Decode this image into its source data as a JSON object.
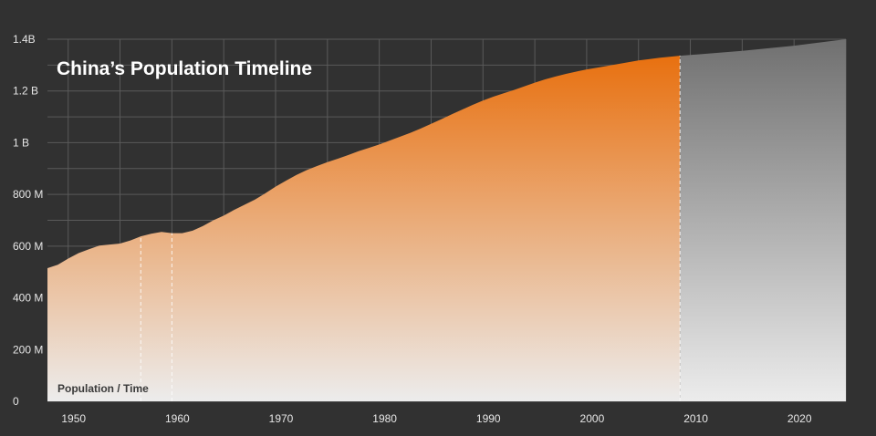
{
  "chart_data": {
    "type": "area",
    "title": "China’s Population Timeline",
    "ylabel": "Population / Time",
    "xlabel": "",
    "xlim": [
      1948,
      2025
    ],
    "ylim": [
      0,
      1400000000
    ],
    "grid": true,
    "x_ticks": [
      {
        "value": 1950,
        "label": "1950"
      },
      {
        "value": 1960,
        "label": "1960"
      },
      {
        "value": 1970,
        "label": "1970"
      },
      {
        "value": 1980,
        "label": "1980"
      },
      {
        "value": 1990,
        "label": "1990"
      },
      {
        "value": 2000,
        "label": "2000"
      },
      {
        "value": 2010,
        "label": "2010"
      },
      {
        "value": 2020,
        "label": "2020"
      }
    ],
    "y_ticks": [
      {
        "value": 0,
        "label": "0"
      },
      {
        "value": 200000000,
        "label": "200 M"
      },
      {
        "value": 400000000,
        "label": "400 M"
      },
      {
        "value": 600000000,
        "label": "600 M"
      },
      {
        "value": 800000000,
        "label": "800 M"
      },
      {
        "value": 1000000000,
        "label": "1 B"
      },
      {
        "value": 1200000000,
        "label": "1.2 B"
      },
      {
        "value": 1400000000,
        "label": "1.4B"
      }
    ],
    "markers": [
      1957,
      1960,
      2009
    ],
    "colors": {
      "background": "#313131",
      "grid": "#5a5a5a",
      "historical": "#e8700f",
      "projected": "#7a7a7a",
      "fade": "#ececec"
    },
    "series": [
      {
        "values": [
          [
            1948,
            515000000
          ],
          [
            1949,
            528000000
          ],
          [
            1950,
            552000000
          ],
          [
            1951,
            573000000
          ],
          [
            1952,
            588000000
          ],
          [
            1953,
            602000000
          ],
          [
            1954,
            606000000
          ],
          [
            1955,
            610000000
          ],
          [
            1956,
            622000000
          ],
          [
            1957,
            638000000
          ],
          [
            1958,
            648000000
          ],
          [
            1959,
            655000000
          ],
          [
            1960,
            650000000
          ],
          [
            1961,
            650000000
          ],
          [
            1962,
            660000000
          ],
          [
            1963,
            678000000
          ],
          [
            1964,
            700000000
          ],
          [
            1965,
            718000000
          ],
          [
            1966,
            740000000
          ],
          [
            1967,
            760000000
          ],
          [
            1968,
            780000000
          ],
          [
            1969,
            804000000
          ],
          [
            1970,
            830000000
          ],
          [
            1971,
            853000000
          ],
          [
            1972,
            875000000
          ],
          [
            1973,
            894000000
          ],
          [
            1974,
            910000000
          ],
          [
            1975,
            925000000
          ],
          [
            1976,
            938000000
          ],
          [
            1977,
            952000000
          ],
          [
            1978,
            967000000
          ],
          [
            1979,
            980000000
          ],
          [
            1980,
            993000000
          ],
          [
            1981,
            1008000000
          ],
          [
            1982,
            1023000000
          ],
          [
            1983,
            1038000000
          ],
          [
            1984,
            1055000000
          ],
          [
            1985,
            1073000000
          ],
          [
            1986,
            1091000000
          ],
          [
            1987,
            1110000000
          ],
          [
            1988,
            1128000000
          ],
          [
            1989,
            1146000000
          ],
          [
            1990,
            1163000000
          ],
          [
            1991,
            1178000000
          ],
          [
            1992,
            1191000000
          ],
          [
            1993,
            1204000000
          ],
          [
            1994,
            1218000000
          ],
          [
            1995,
            1232000000
          ],
          [
            1996,
            1245000000
          ],
          [
            1997,
            1256000000
          ],
          [
            1998,
            1266000000
          ],
          [
            1999,
            1275000000
          ],
          [
            2000,
            1283000000
          ],
          [
            2001,
            1290000000
          ],
          [
            2002,
            1297000000
          ],
          [
            2003,
            1304000000
          ],
          [
            2004,
            1311000000
          ],
          [
            2005,
            1318000000
          ],
          [
            2006,
            1323000000
          ],
          [
            2007,
            1328000000
          ],
          [
            2008,
            1332000000
          ],
          [
            2009,
            1336000000
          ]
        ]
      },
      {
        "values": [
          [
            2009,
            1336000000
          ],
          [
            2015,
            1355000000
          ],
          [
            2020,
            1375000000
          ],
          [
            2025,
            1400000000
          ]
        ]
      }
    ]
  }
}
